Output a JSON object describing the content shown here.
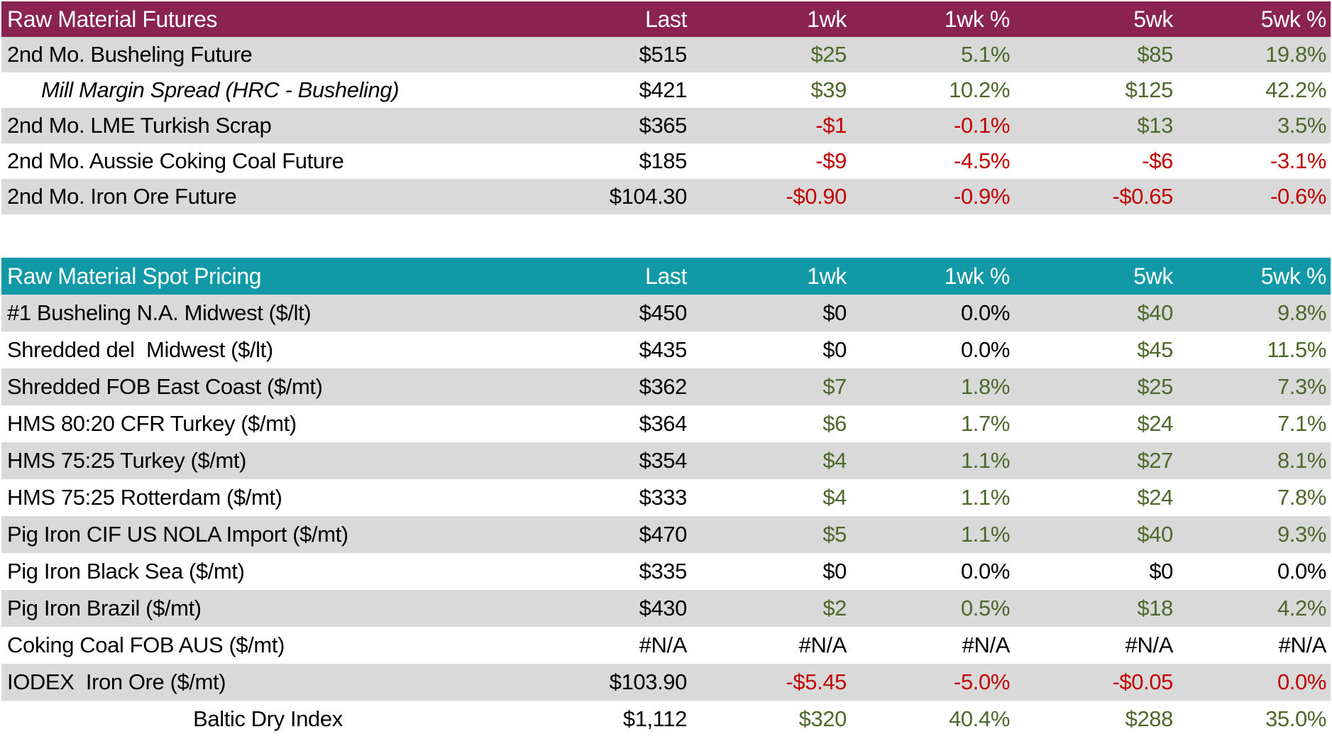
{
  "palette": {
    "futures_header_bg": "#8b2351",
    "spot_header_bg": "#1299a7",
    "stripe_bg": "#d9d9d9",
    "positive_green": "#4e682c",
    "negative_red": "#c30000",
    "neutral_black": "#000000",
    "header_text": "#ffffff"
  },
  "chart_data": [
    {
      "type": "table",
      "title": "Raw Material Futures",
      "accent": "#8b2351",
      "columns": [
        "Last",
        "1wk",
        "1wk %",
        "5wk",
        "5wk %"
      ],
      "rows": [
        {
          "label": "2nd Mo. Busheling Future",
          "style": "normal",
          "values": [
            [
              "$515",
              "k"
            ],
            [
              "$25",
              "g"
            ],
            [
              "5.1%",
              "g"
            ],
            [
              "$85",
              "g"
            ],
            [
              "19.8%",
              "g"
            ]
          ]
        },
        {
          "label": "Mill Margin Spread (HRC - Busheling)",
          "style": "italic",
          "values": [
            [
              "$421",
              "k"
            ],
            [
              "$39",
              "g"
            ],
            [
              "10.2%",
              "g"
            ],
            [
              "$125",
              "g"
            ],
            [
              "42.2%",
              "g"
            ]
          ]
        },
        {
          "label": "2nd Mo. LME Turkish Scrap",
          "style": "normal",
          "values": [
            [
              "$365",
              "k"
            ],
            [
              "-$1",
              "r"
            ],
            [
              "-0.1%",
              "r"
            ],
            [
              "$13",
              "g"
            ],
            [
              "3.5%",
              "g"
            ]
          ]
        },
        {
          "label": "2nd Mo. Aussie Coking Coal Future",
          "style": "normal",
          "values": [
            [
              "$185",
              "k"
            ],
            [
              "-$9",
              "r"
            ],
            [
              "-4.5%",
              "r"
            ],
            [
              "-$6",
              "r"
            ],
            [
              "-3.1%",
              "r"
            ]
          ]
        },
        {
          "label": "2nd Mo. Iron Ore Future",
          "style": "normal",
          "values": [
            [
              "$104.30",
              "k"
            ],
            [
              "-$0.90",
              "r"
            ],
            [
              "-0.9%",
              "r"
            ],
            [
              "-$0.65",
              "r"
            ],
            [
              "-0.6%",
              "r"
            ]
          ]
        }
      ]
    },
    {
      "type": "table",
      "title": "Raw Material Spot Pricing",
      "accent": "#1299a7",
      "columns": [
        "Last",
        "1wk",
        "1wk %",
        "5wk",
        "5wk %"
      ],
      "rows": [
        {
          "label": "#1 Busheling N.A. Midwest ($/lt)",
          "style": "normal",
          "values": [
            [
              "$450",
              "k"
            ],
            [
              "$0",
              "k"
            ],
            [
              "0.0%",
              "k"
            ],
            [
              "$40",
              "g"
            ],
            [
              "9.8%",
              "g"
            ]
          ]
        },
        {
          "label": "Shredded del  Midwest ($/lt)",
          "style": "normal",
          "values": [
            [
              "$435",
              "k"
            ],
            [
              "$0",
              "k"
            ],
            [
              "0.0%",
              "k"
            ],
            [
              "$45",
              "g"
            ],
            [
              "11.5%",
              "g"
            ]
          ]
        },
        {
          "label": "Shredded FOB East Coast ($/mt)",
          "style": "normal",
          "values": [
            [
              "$362",
              "k"
            ],
            [
              "$7",
              "g"
            ],
            [
              "1.8%",
              "g"
            ],
            [
              "$25",
              "g"
            ],
            [
              "7.3%",
              "g"
            ]
          ]
        },
        {
          "label": "HMS 80:20 CFR Turkey ($/mt)",
          "style": "normal",
          "values": [
            [
              "$364",
              "k"
            ],
            [
              "$6",
              "g"
            ],
            [
              "1.7%",
              "g"
            ],
            [
              "$24",
              "g"
            ],
            [
              "7.1%",
              "g"
            ]
          ]
        },
        {
          "label": "HMS 75:25 Turkey ($/mt)",
          "style": "normal",
          "values": [
            [
              "$354",
              "k"
            ],
            [
              "$4",
              "g"
            ],
            [
              "1.1%",
              "g"
            ],
            [
              "$27",
              "g"
            ],
            [
              "8.1%",
              "g"
            ]
          ]
        },
        {
          "label": "HMS 75:25 Rotterdam ($/mt)",
          "style": "normal",
          "values": [
            [
              "$333",
              "k"
            ],
            [
              "$4",
              "g"
            ],
            [
              "1.1%",
              "g"
            ],
            [
              "$24",
              "g"
            ],
            [
              "7.8%",
              "g"
            ]
          ]
        },
        {
          "label": "Pig Iron CIF US NOLA Import ($/mt)",
          "style": "normal",
          "values": [
            [
              "$470",
              "k"
            ],
            [
              "$5",
              "g"
            ],
            [
              "1.1%",
              "g"
            ],
            [
              "$40",
              "g"
            ],
            [
              "9.3%",
              "g"
            ]
          ]
        },
        {
          "label": "Pig Iron Black Sea ($/mt)",
          "style": "normal",
          "values": [
            [
              "$335",
              "k"
            ],
            [
              "$0",
              "k"
            ],
            [
              "0.0%",
              "k"
            ],
            [
              "$0",
              "k"
            ],
            [
              "0.0%",
              "k"
            ]
          ]
        },
        {
          "label": "Pig Iron Brazil ($/mt)",
          "style": "normal",
          "values": [
            [
              "$430",
              "k"
            ],
            [
              "$2",
              "g"
            ],
            [
              "0.5%",
              "g"
            ],
            [
              "$18",
              "g"
            ],
            [
              "4.2%",
              "g"
            ]
          ]
        },
        {
          "label": "Coking Coal FOB AUS ($/mt)",
          "style": "normal",
          "values": [
            [
              "#N/A",
              "k"
            ],
            [
              "#N/A",
              "k"
            ],
            [
              "#N/A",
              "k"
            ],
            [
              "#N/A",
              "k"
            ],
            [
              "#N/A",
              "k"
            ]
          ]
        },
        {
          "label": "IODEX  Iron Ore ($/mt)",
          "style": "normal",
          "values": [
            [
              "$103.90",
              "k"
            ],
            [
              "-$5.45",
              "r"
            ],
            [
              "-5.0%",
              "r"
            ],
            [
              "-$0.05",
              "r"
            ],
            [
              "0.0%",
              "r"
            ]
          ]
        },
        {
          "label": "Baltic Dry Index",
          "style": "center",
          "values": [
            [
              "$1,112",
              "k"
            ],
            [
              "$320",
              "g"
            ],
            [
              "40.4%",
              "g"
            ],
            [
              "$288",
              "g"
            ],
            [
              "35.0%",
              "g"
            ]
          ]
        }
      ]
    }
  ]
}
